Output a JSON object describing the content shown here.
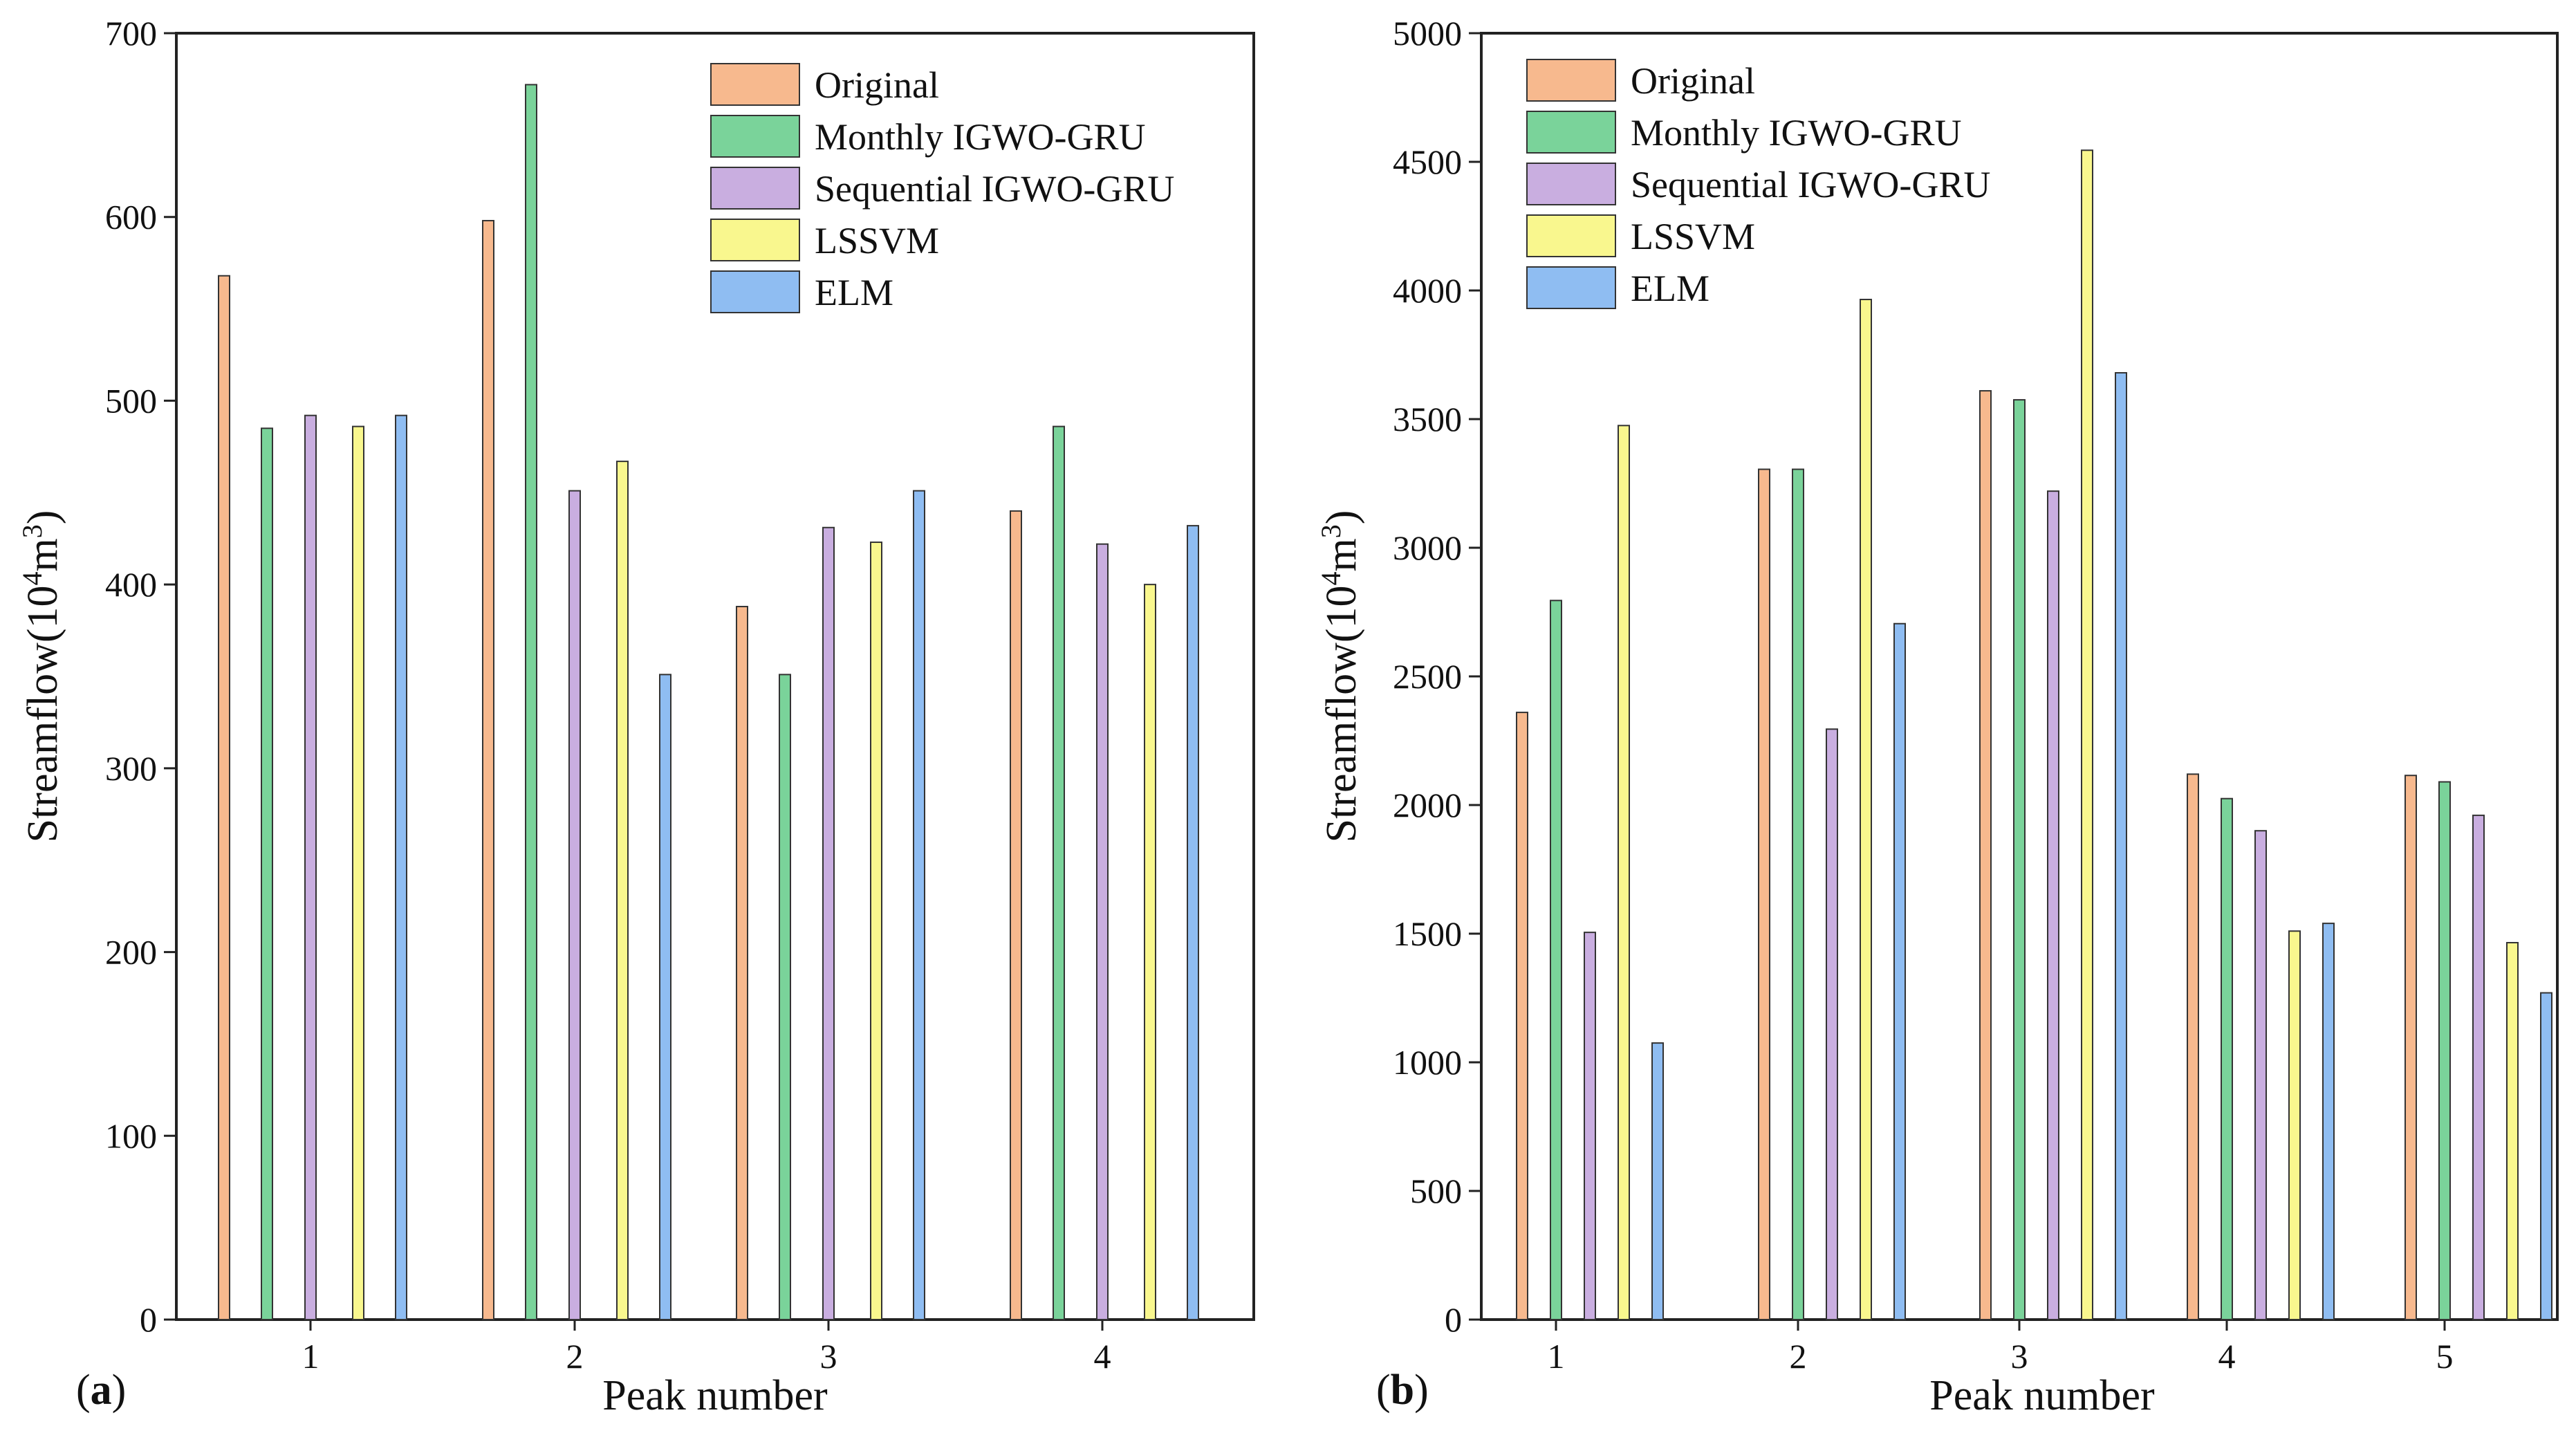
{
  "chart_data": [
    {
      "type": "bar",
      "panel_label": "(a)",
      "panel_letter": "a",
      "xlabel": "Peak number",
      "ylabel": "Streamflow(10⁴m³)",
      "ylabel_parts": [
        "Streamflow(10",
        "4",
        "m",
        "3",
        ")"
      ],
      "ylim": [
        0,
        700
      ],
      "yticks": [
        0,
        100,
        200,
        300,
        400,
        500,
        600,
        700
      ],
      "categories": [
        "1",
        "2",
        "3",
        "4"
      ],
      "legend_position": "top-right",
      "series": [
        {
          "name": "Original",
          "color": "#f7b98e",
          "values": [
            568,
            598,
            388,
            440
          ]
        },
        {
          "name": "Monthly IGWO-GRU",
          "color": "#7ad39a",
          "values": [
            485,
            672,
            351,
            486
          ]
        },
        {
          "name": "Sequential IGWO-GRU",
          "color": "#c9aee0",
          "values": [
            492,
            451,
            431,
            422
          ]
        },
        {
          "name": "LSSVM",
          "color": "#f9f78e",
          "values": [
            486,
            467,
            423,
            400
          ]
        },
        {
          "name": "ELM",
          "color": "#8fbdf2",
          "values": [
            492,
            351,
            451,
            432
          ]
        }
      ]
    },
    {
      "type": "bar",
      "panel_label": "(b)",
      "panel_letter": "b",
      "xlabel": "Peak number",
      "ylabel": "Streamflow(10⁴m³)",
      "ylabel_parts": [
        "Streamflow(10",
        "4",
        "m",
        "3",
        ")"
      ],
      "ylim": [
        0,
        5000
      ],
      "yticks": [
        0,
        500,
        1000,
        1500,
        2000,
        2500,
        3000,
        3500,
        4000,
        4500,
        5000
      ],
      "categories": [
        "1",
        "2",
        "3",
        "4",
        "5"
      ],
      "legend_position": "top-left",
      "series": [
        {
          "name": "Original",
          "color": "#f7b98e",
          "values": [
            2360,
            3305,
            3610,
            2120,
            2115
          ]
        },
        {
          "name": "Monthly IGWO-GRU",
          "color": "#7ad39a",
          "values": [
            2795,
            3305,
            3575,
            2025,
            2090
          ]
        },
        {
          "name": "Sequential IGWO-GRU",
          "color": "#c9aee0",
          "values": [
            1505,
            2295,
            3220,
            1900,
            1960
          ]
        },
        {
          "name": "LSSVM",
          "color": "#f9f78e",
          "values": [
            3475,
            3965,
            4545,
            1510,
            1465
          ]
        },
        {
          "name": "ELM",
          "color": "#8fbdf2",
          "values": [
            1075,
            2705,
            3680,
            1540,
            1270
          ]
        }
      ]
    }
  ]
}
